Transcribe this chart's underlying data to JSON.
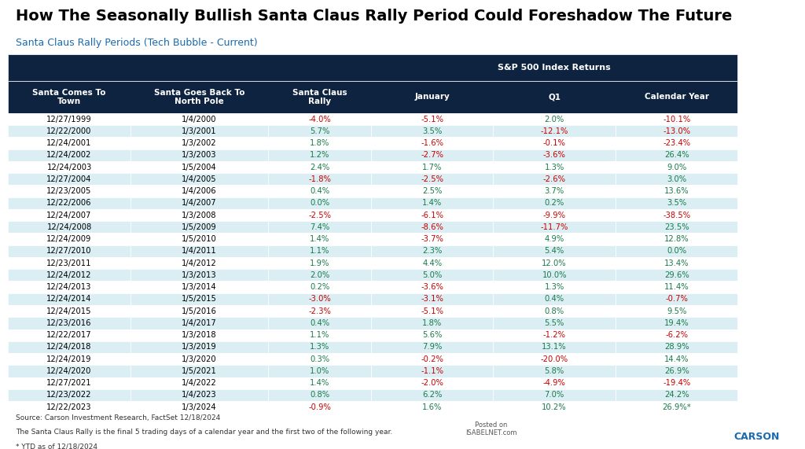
{
  "title": "How The Seasonally Bullish Santa Claus Rally Period Could Foreshadow The Future",
  "subtitle": "Santa Claus Rally Periods (Tech Bubble - Current)",
  "sp500_header": "S&P 500 Index Returns",
  "col_headers": [
    "Santa Comes To\nTown",
    "Santa Goes Back To\nNorth Pole",
    "Santa Claus\nRally",
    "January",
    "Q1",
    "Calendar Year"
  ],
  "rows": [
    [
      "12/27/1999",
      "1/4/2000",
      "-4.0%",
      "-5.1%",
      "2.0%",
      "-10.1%"
    ],
    [
      "12/22/2000",
      "1/3/2001",
      "5.7%",
      "3.5%",
      "-12.1%",
      "-13.0%"
    ],
    [
      "12/24/2001",
      "1/3/2002",
      "1.8%",
      "-1.6%",
      "-0.1%",
      "-23.4%"
    ],
    [
      "12/24/2002",
      "1/3/2003",
      "1.2%",
      "-2.7%",
      "-3.6%",
      "26.4%"
    ],
    [
      "12/24/2003",
      "1/5/2004",
      "2.4%",
      "1.7%",
      "1.3%",
      "9.0%"
    ],
    [
      "12/27/2004",
      "1/4/2005",
      "-1.8%",
      "-2.5%",
      "-2.6%",
      "3.0%"
    ],
    [
      "12/23/2005",
      "1/4/2006",
      "0.4%",
      "2.5%",
      "3.7%",
      "13.6%"
    ],
    [
      "12/22/2006",
      "1/4/2007",
      "0.0%",
      "1.4%",
      "0.2%",
      "3.5%"
    ],
    [
      "12/24/2007",
      "1/3/2008",
      "-2.5%",
      "-6.1%",
      "-9.9%",
      "-38.5%"
    ],
    [
      "12/24/2008",
      "1/5/2009",
      "7.4%",
      "-8.6%",
      "-11.7%",
      "23.5%"
    ],
    [
      "12/24/2009",
      "1/5/2010",
      "1.4%",
      "-3.7%",
      "4.9%",
      "12.8%"
    ],
    [
      "12/27/2010",
      "1/4/2011",
      "1.1%",
      "2.3%",
      "5.4%",
      "0.0%"
    ],
    [
      "12/23/2011",
      "1/4/2012",
      "1.9%",
      "4.4%",
      "12.0%",
      "13.4%"
    ],
    [
      "12/24/2012",
      "1/3/2013",
      "2.0%",
      "5.0%",
      "10.0%",
      "29.6%"
    ],
    [
      "12/24/2013",
      "1/3/2014",
      "0.2%",
      "-3.6%",
      "1.3%",
      "11.4%"
    ],
    [
      "12/24/2014",
      "1/5/2015",
      "-3.0%",
      "-3.1%",
      "0.4%",
      "-0.7%"
    ],
    [
      "12/24/2015",
      "1/5/2016",
      "-2.3%",
      "-5.1%",
      "0.8%",
      "9.5%"
    ],
    [
      "12/23/2016",
      "1/4/2017",
      "0.4%",
      "1.8%",
      "5.5%",
      "19.4%"
    ],
    [
      "12/22/2017",
      "1/3/2018",
      "1.1%",
      "5.6%",
      "-1.2%",
      "-6.2%"
    ],
    [
      "12/24/2018",
      "1/3/2019",
      "1.3%",
      "7.9%",
      "13.1%",
      "28.9%"
    ],
    [
      "12/24/2019",
      "1/3/2020",
      "0.3%",
      "-0.2%",
      "-20.0%",
      "14.4%"
    ],
    [
      "12/24/2020",
      "1/5/2021",
      "1.0%",
      "-1.1%",
      "5.8%",
      "26.9%"
    ],
    [
      "12/27/2021",
      "1/4/2022",
      "1.4%",
      "-2.0%",
      "-4.9%",
      "-19.4%"
    ],
    [
      "12/23/2022",
      "1/4/2023",
      "0.8%",
      "6.2%",
      "7.0%",
      "24.2%"
    ],
    [
      "12/22/2023",
      "1/3/2024",
      "-0.9%",
      "1.6%",
      "10.2%",
      "26.9%*"
    ]
  ],
  "header_bg": "#0d2340",
  "header_text": "#ffffff",
  "row_bg_even": "#daeef3",
  "row_bg_odd": "#ffffff",
  "positive_color": "#1a7a4a",
  "negative_color": "#cc0000",
  "neutral_color": "#1a7a4a",
  "footer_text1": "Source: Carson Investment Research, FactSet 12/18/2024",
  "footer_text2": "The Santa Claus Rally is the final 5 trading days of a calendar year and the first two of the following year.",
  "footer_text3": "* YTD as of 12/18/2024",
  "background_color": "#ffffff"
}
